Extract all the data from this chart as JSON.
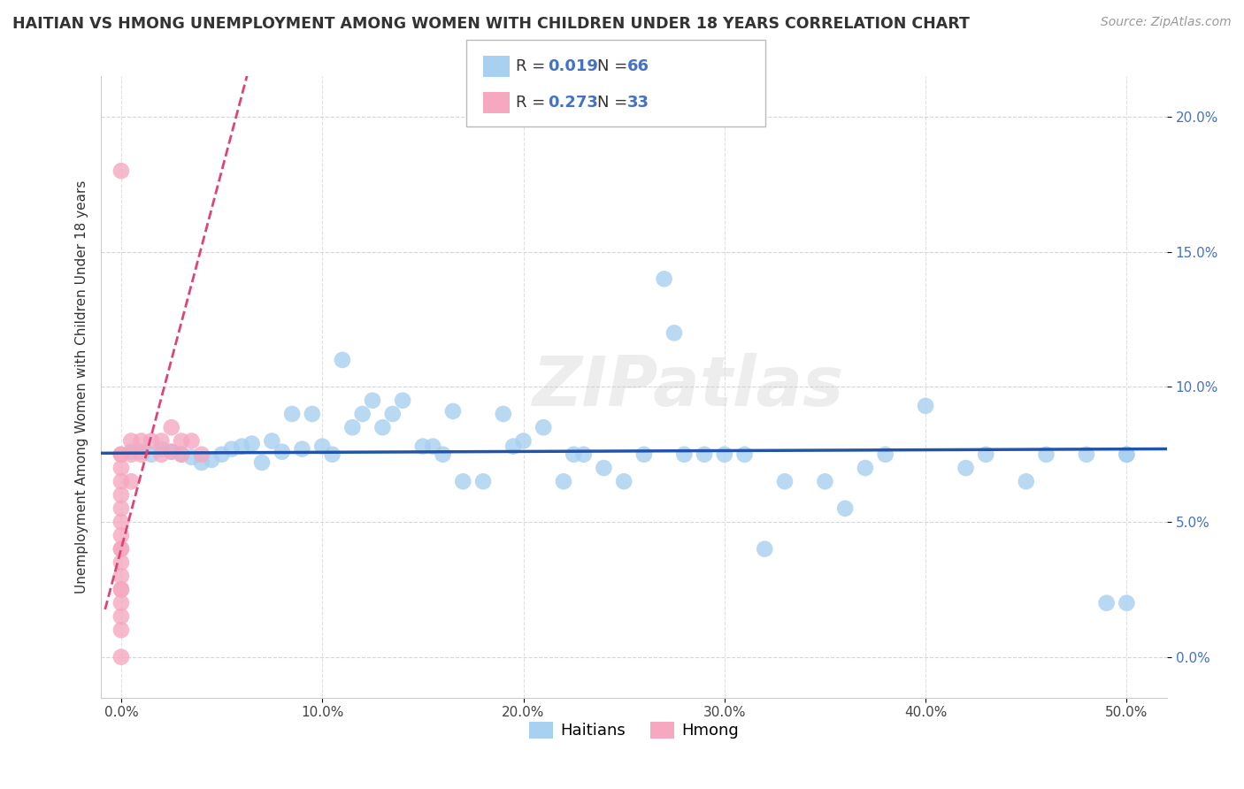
{
  "title": "HAITIAN VS HMONG UNEMPLOYMENT AMONG WOMEN WITH CHILDREN UNDER 18 YEARS CORRELATION CHART",
  "source": "Source: ZipAtlas.com",
  "ylabel": "Unemployment Among Women with Children Under 18 years",
  "x_ticks": [
    0.0,
    0.1,
    0.2,
    0.3,
    0.4,
    0.5
  ],
  "x_tick_labels": [
    "0.0%",
    "10.0%",
    "20.0%",
    "30.0%",
    "40.0%",
    "50.0%"
  ],
  "y_ticks": [
    0.0,
    0.05,
    0.1,
    0.15,
    0.2
  ],
  "y_tick_labels": [
    "0.0%",
    "5.0%",
    "10.0%",
    "15.0%",
    "20.0%"
  ],
  "xlim": [
    -0.01,
    0.52
  ],
  "ylim": [
    -0.015,
    0.215
  ],
  "haitian_color": "#a8d0f0",
  "hmong_color": "#f5a8c0",
  "haitian_trend_color": "#2255aa",
  "hmong_trend_color": "#dd4477",
  "R_haitian": 0.019,
  "N_haitian": 66,
  "R_hmong": 0.273,
  "N_hmong": 33,
  "watermark": "ZIPatlas",
  "haitian_x": [
    0.005,
    0.01,
    0.015,
    0.02,
    0.025,
    0.03,
    0.035,
    0.04,
    0.045,
    0.05,
    0.055,
    0.06,
    0.065,
    0.07,
    0.075,
    0.08,
    0.085,
    0.09,
    0.095,
    0.1,
    0.105,
    0.11,
    0.115,
    0.12,
    0.125,
    0.13,
    0.135,
    0.14,
    0.15,
    0.155,
    0.16,
    0.165,
    0.17,
    0.18,
    0.19,
    0.195,
    0.2,
    0.21,
    0.22,
    0.225,
    0.23,
    0.24,
    0.25,
    0.26,
    0.27,
    0.275,
    0.28,
    0.29,
    0.3,
    0.31,
    0.32,
    0.33,
    0.35,
    0.36,
    0.37,
    0.38,
    0.4,
    0.42,
    0.43,
    0.45,
    0.46,
    0.48,
    0.49,
    0.5,
    0.5,
    0.5
  ],
  "haitian_y": [
    0.076,
    0.076,
    0.075,
    0.077,
    0.076,
    0.075,
    0.074,
    0.072,
    0.073,
    0.075,
    0.077,
    0.078,
    0.079,
    0.072,
    0.08,
    0.076,
    0.09,
    0.077,
    0.09,
    0.078,
    0.075,
    0.11,
    0.085,
    0.09,
    0.095,
    0.085,
    0.09,
    0.095,
    0.078,
    0.078,
    0.075,
    0.091,
    0.065,
    0.065,
    0.09,
    0.078,
    0.08,
    0.085,
    0.065,
    0.075,
    0.075,
    0.07,
    0.065,
    0.075,
    0.14,
    0.12,
    0.075,
    0.075,
    0.075,
    0.075,
    0.04,
    0.065,
    0.065,
    0.055,
    0.07,
    0.075,
    0.093,
    0.07,
    0.075,
    0.065,
    0.075,
    0.075,
    0.02,
    0.075,
    0.075,
    0.02
  ],
  "hmong_x": [
    0.0,
    0.0,
    0.0,
    0.0,
    0.0,
    0.0,
    0.0,
    0.0,
    0.0,
    0.0,
    0.0,
    0.0,
    0.0,
    0.0,
    0.0,
    0.0,
    0.0,
    0.0,
    0.0,
    0.005,
    0.005,
    0.005,
    0.01,
    0.01,
    0.015,
    0.02,
    0.02,
    0.025,
    0.025,
    0.03,
    0.03,
    0.035,
    0.04
  ],
  "hmong_y": [
    0.0,
    0.01,
    0.015,
    0.02,
    0.025,
    0.025,
    0.03,
    0.035,
    0.04,
    0.04,
    0.045,
    0.05,
    0.055,
    0.06,
    0.065,
    0.07,
    0.075,
    0.075,
    0.18,
    0.065,
    0.075,
    0.08,
    0.075,
    0.08,
    0.08,
    0.075,
    0.08,
    0.076,
    0.085,
    0.075,
    0.08,
    0.08,
    0.075
  ]
}
